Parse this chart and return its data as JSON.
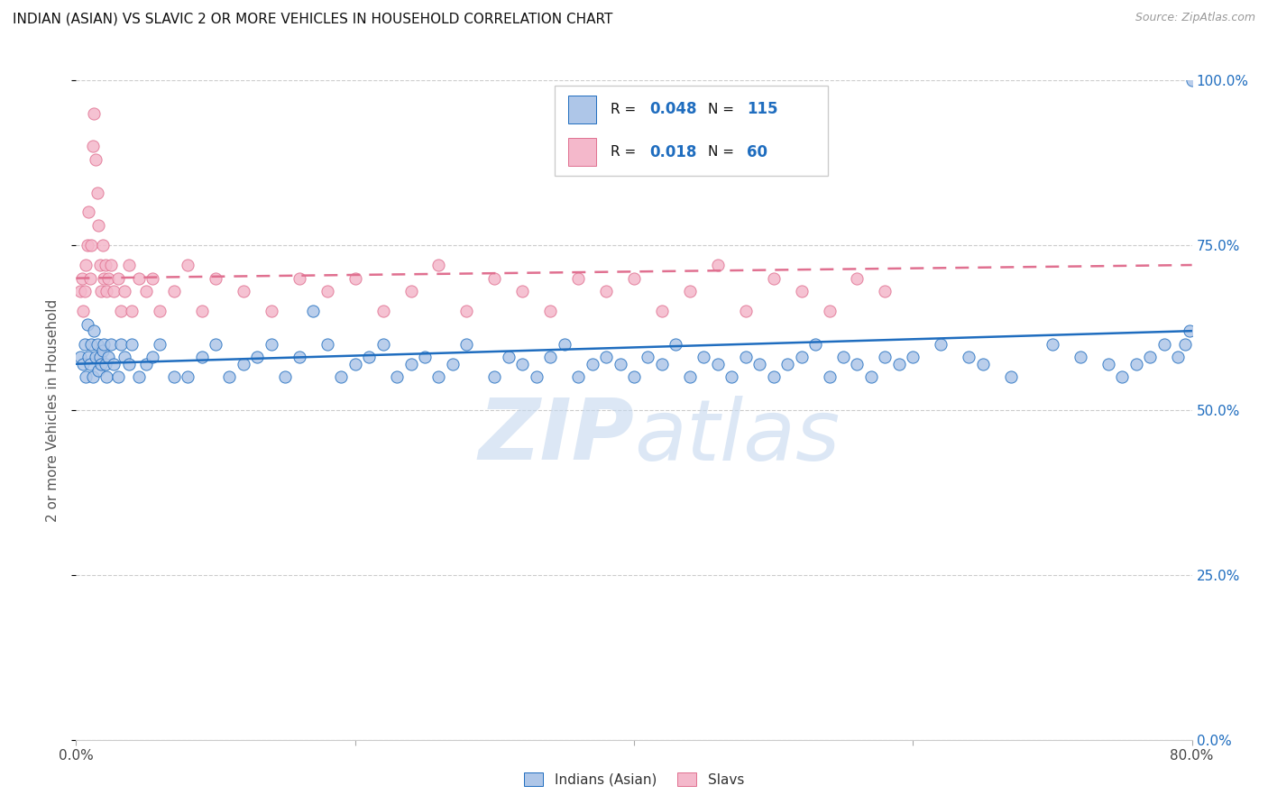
{
  "title": "INDIAN (ASIAN) VS SLAVIC 2 OR MORE VEHICLES IN HOUSEHOLD CORRELATION CHART",
  "source": "Source: ZipAtlas.com",
  "ylabel": "2 or more Vehicles in Household",
  "ytick_labels": [
    "0.0%",
    "25.0%",
    "50.0%",
    "75.0%",
    "100.0%"
  ],
  "ytick_values": [
    0.0,
    25.0,
    50.0,
    75.0,
    100.0
  ],
  "xmin": 0.0,
  "xmax": 80.0,
  "ymin": 0.0,
  "ymax": 100.0,
  "legend_label1": "Indians (Asian)",
  "legend_label2": "Slavs",
  "R1": "0.048",
  "N1": "115",
  "R2": "0.018",
  "N2": "60",
  "color_indian": "#aec6e8",
  "color_slavic": "#f4b8cb",
  "line_color_indian": "#1f6dbf",
  "line_color_slavic": "#e07090",
  "watermark_zip": "ZIP",
  "watermark_atlas": "atlas",
  "indian_x": [
    0.3,
    0.5,
    0.6,
    0.7,
    0.8,
    0.9,
    1.0,
    1.1,
    1.2,
    1.3,
    1.4,
    1.5,
    1.6,
    1.7,
    1.8,
    1.9,
    2.0,
    2.1,
    2.2,
    2.3,
    2.5,
    2.7,
    3.0,
    3.2,
    3.5,
    3.8,
    4.0,
    4.5,
    5.0,
    5.5,
    6.0,
    7.0,
    8.0,
    9.0,
    10.0,
    11.0,
    12.0,
    13.0,
    14.0,
    15.0,
    16.0,
    17.0,
    18.0,
    19.0,
    20.0,
    21.0,
    22.0,
    23.0,
    24.0,
    25.0,
    26.0,
    27.0,
    28.0,
    30.0,
    31.0,
    32.0,
    33.0,
    34.0,
    35.0,
    36.0,
    37.0,
    38.0,
    39.0,
    40.0,
    41.0,
    42.0,
    43.0,
    44.0,
    45.0,
    46.0,
    47.0,
    48.0,
    49.0,
    50.0,
    51.0,
    52.0,
    53.0,
    54.0,
    55.0,
    56.0,
    57.0,
    58.0,
    59.0,
    60.0,
    62.0,
    64.0,
    65.0,
    67.0,
    70.0,
    72.0,
    74.0,
    75.0,
    76.0,
    77.0,
    78.0,
    79.0,
    79.5,
    79.8,
    80.0
  ],
  "indian_y": [
    58,
    57,
    60,
    55,
    63,
    58,
    57,
    60,
    55,
    62,
    58,
    60,
    56,
    58,
    57,
    59,
    60,
    57,
    55,
    58,
    60,
    57,
    55,
    60,
    58,
    57,
    60,
    55,
    57,
    58,
    60,
    55,
    55,
    58,
    60,
    55,
    57,
    58,
    60,
    55,
    58,
    65,
    60,
    55,
    57,
    58,
    60,
    55,
    57,
    58,
    55,
    57,
    60,
    55,
    58,
    57,
    55,
    58,
    60,
    55,
    57,
    58,
    57,
    55,
    58,
    57,
    60,
    55,
    58,
    57,
    55,
    58,
    57,
    55,
    57,
    58,
    60,
    55,
    58,
    57,
    55,
    58,
    57,
    58,
    60,
    58,
    57,
    55,
    60,
    58,
    57,
    55,
    57,
    58,
    60,
    58,
    60,
    62,
    100
  ],
  "slavic_x": [
    0.3,
    0.4,
    0.5,
    0.6,
    0.7,
    0.8,
    0.9,
    1.0,
    1.1,
    1.2,
    1.3,
    1.4,
    1.5,
    1.6,
    1.7,
    1.8,
    1.9,
    2.0,
    2.1,
    2.2,
    2.3,
    2.5,
    2.7,
    3.0,
    3.2,
    3.5,
    3.8,
    4.0,
    4.5,
    5.0,
    5.5,
    6.0,
    7.0,
    8.0,
    9.0,
    10.0,
    12.0,
    14.0,
    16.0,
    18.0,
    20.0,
    22.0,
    24.0,
    26.0,
    28.0,
    30.0,
    32.0,
    34.0,
    36.0,
    38.0,
    40.0,
    42.0,
    44.0,
    46.0,
    48.0,
    50.0,
    52.0,
    54.0,
    56.0,
    58.0
  ],
  "slavic_y": [
    68,
    70,
    65,
    68,
    72,
    75,
    80,
    70,
    75,
    90,
    95,
    88,
    83,
    78,
    72,
    68,
    75,
    70,
    72,
    68,
    70,
    72,
    68,
    70,
    65,
    68,
    72,
    65,
    70,
    68,
    70,
    65,
    68,
    72,
    65,
    70,
    68,
    65,
    70,
    68,
    70,
    65,
    68,
    72,
    65,
    70,
    68,
    65,
    70,
    68,
    70,
    65,
    68,
    72,
    65,
    70,
    68,
    65,
    70,
    68
  ]
}
